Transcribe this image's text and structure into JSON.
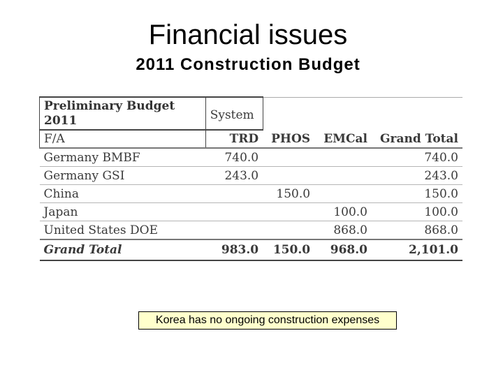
{
  "slide": {
    "title": "Financial issues",
    "subtitle": "2011 Construction Budget"
  },
  "table": {
    "corner_label_line1": "Preliminary Budget",
    "corner_label_line2": "2011",
    "group_header": "System",
    "row_header_label": "F/A",
    "columns": [
      "TRD",
      "PHOS",
      "EMCal",
      "Grand Total"
    ],
    "rows": [
      {
        "label": "Germany BMBF",
        "values": [
          "740.0",
          "",
          "",
          "740.0"
        ]
      },
      {
        "label": "Germany GSI",
        "values": [
          "243.0",
          "",
          "",
          "243.0"
        ]
      },
      {
        "label": "China",
        "values": [
          "",
          "150.0",
          "",
          "150.0"
        ]
      },
      {
        "label": "Japan",
        "values": [
          "",
          "",
          "100.0",
          "100.0"
        ]
      },
      {
        "label": "United States DOE",
        "values": [
          "",
          "",
          "868.0",
          "868.0"
        ]
      }
    ],
    "total": {
      "label": "Grand Total",
      "values": [
        "983.0",
        "150.0",
        "968.0",
        "2,101.0"
      ]
    }
  },
  "note": {
    "text": "Korea has no ongoing construction expenses",
    "background": "#ffffcc"
  }
}
